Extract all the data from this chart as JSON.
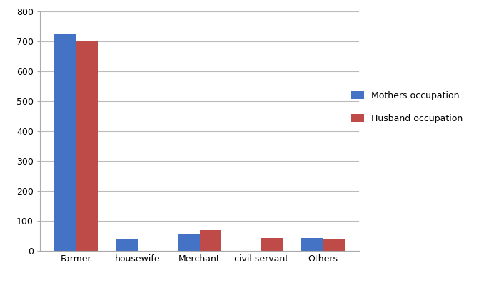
{
  "categories": [
    "Farmer",
    "housewife",
    "Merchant",
    "civil servant",
    "Others"
  ],
  "mothers_values": [
    725,
    38,
    57,
    0,
    43
  ],
  "husband_values": [
    700,
    0,
    68,
    43,
    37
  ],
  "mothers_color": "#4472C4",
  "husband_color": "#BE4B48",
  "mothers_label": "Mothers occupation",
  "husband_label": "Husband occupation",
  "ylim": [
    0,
    800
  ],
  "yticks": [
    0,
    100,
    200,
    300,
    400,
    500,
    600,
    700,
    800
  ],
  "bar_width": 0.35,
  "background_color": "#ffffff"
}
